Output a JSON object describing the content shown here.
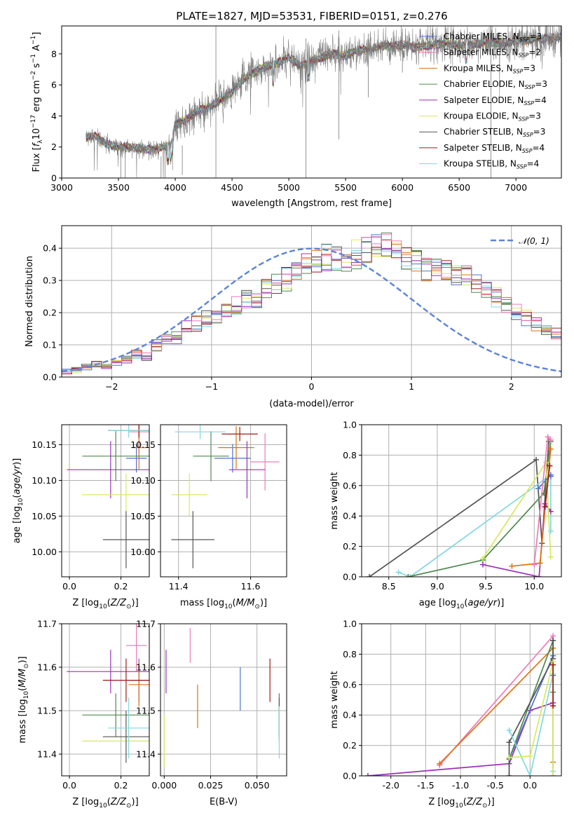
{
  "figure_title": "PLATE=1827, MJD=53531, FIBERID=0151, z=0.276",
  "colors": {
    "blue": "#4f72d2",
    "orange": "#e07010",
    "green": "#4f8a4f",
    "purple": "#9a30b8",
    "yellow": "#d8e860",
    "gray": "#555555",
    "red": "#a01818",
    "cyan": "#80d8e0",
    "pink": "#f07ab8",
    "spectrum_gray": "#7a7a7a",
    "gauss": "#5b84d8"
  },
  "chart_data": [
    {
      "id": "spectrum",
      "type": "line",
      "xlabel": "wavelength [Angstrom, rest frame]",
      "ylabel": "Flux [$f_\\lambda 10^{-17}$ erg cm$^{-2}$ s$^{-1}$ A$^{-1}$]",
      "xlim": [
        3000,
        7400
      ],
      "ylim": [
        0,
        9.8
      ],
      "xticks": [
        3000,
        3500,
        4000,
        4500,
        5000,
        5500,
        6000,
        6500,
        7000
      ],
      "yticks": [
        0,
        2,
        4,
        6,
        8
      ],
      "legend_position": "upper right",
      "legend": [
        {
          "label": "Chabrier MILES, N",
          "sub": "SSP",
          "n": "=3",
          "color": "blue"
        },
        {
          "label": "Salpeter MILES, N",
          "sub": "SSP",
          "n": "=2",
          "color": "pink"
        },
        {
          "label": "Kroupa MILES, N",
          "sub": "SSP",
          "n": "=3",
          "color": "orange"
        },
        {
          "label": "Chabrier ELODIE, N",
          "sub": "SSP",
          "n": "=3",
          "color": "green"
        },
        {
          "label": "Salpeter ELODIE, N",
          "sub": "SSP",
          "n": "=4",
          "color": "purple"
        },
        {
          "label": "Kroupa ELODIE, N",
          "sub": "SSP",
          "n": "=3",
          "color": "yellow"
        },
        {
          "label": "Chabrier STELIB, N",
          "sub": "SSP",
          "n": "=3",
          "color": "gray"
        },
        {
          "label": "Salpeter STELIB, N",
          "sub": "SSP",
          "n": "=4",
          "color": "red"
        },
        {
          "label": "Kroupa STELIB, N",
          "sub": "SSP",
          "n": "=4",
          "color": "cyan"
        }
      ],
      "continuum_wavelength": [
        3220,
        3300,
        3400,
        3500,
        3600,
        3700,
        3800,
        3900,
        3960,
        4000,
        4100,
        4200,
        4300,
        4400,
        4500,
        4600,
        4700,
        4800,
        4900,
        5000,
        5100,
        5200,
        5300,
        5400,
        5500,
        5600,
        5700,
        5800,
        5900,
        6000,
        6100,
        6200,
        6300,
        6400,
        6500,
        6600,
        6700,
        6800,
        6900,
        7000,
        7100,
        7200,
        7300,
        7400
      ],
      "continuum_flux": [
        2.6,
        2.7,
        2.2,
        2.0,
        2.0,
        1.9,
        1.8,
        2.0,
        2.2,
        3.4,
        3.8,
        4.3,
        4.6,
        5.0,
        5.5,
        6.4,
        6.8,
        7.2,
        7.4,
        7.8,
        7.2,
        7.5,
        7.8,
        8.0,
        7.9,
        8.2,
        8.3,
        8.5,
        8.5,
        8.6,
        8.4,
        8.5,
        8.6,
        8.7,
        8.5,
        8.6,
        8.7,
        8.7,
        8.7,
        8.8,
        8.9,
        9.0,
        9.0,
        9.1
      ]
    },
    {
      "id": "residuals",
      "type": "histogram",
      "xlabel": "(data-model)/error",
      "ylabel": "Normed distribution",
      "xlim": [
        -2.5,
        2.5
      ],
      "ylim": [
        0,
        0.47
      ],
      "xticks": [
        -2,
        -1,
        0,
        1,
        2
      ],
      "yticks": [
        0.0,
        0.1,
        0.2,
        0.3,
        0.4
      ],
      "legend_position": "upper right",
      "legend": [
        {
          "label": "𝒩(0, 1)",
          "color": "gauss"
        }
      ],
      "bin_edges_start": -2.5,
      "bin_width": 0.1,
      "reference_values": [
        0.015,
        0.021,
        0.035,
        0.041,
        0.038,
        0.05,
        0.053,
        0.07,
        0.066,
        0.098,
        0.12,
        0.125,
        0.15,
        0.17,
        0.18,
        0.19,
        0.21,
        0.222,
        0.235,
        0.248,
        0.275,
        0.29,
        0.308,
        0.33,
        0.355,
        0.355,
        0.372,
        0.37,
        0.365,
        0.385,
        0.4,
        0.415,
        0.405,
        0.39,
        0.375,
        0.362,
        0.345,
        0.332,
        0.325,
        0.318,
        0.315,
        0.298,
        0.27,
        0.245,
        0.225,
        0.205,
        0.185,
        0.168,
        0.148,
        0.13,
        0.112,
        0.092,
        0.08,
        0.07,
        0.062,
        0.05,
        0.045,
        0.038,
        0.03,
        0.03
      ]
    },
    {
      "id": "age_vs_Z",
      "type": "errorbar",
      "xlabel": "Z [log$_{10}$($Z/Z_\\odot$)]",
      "ylabel": "age  [log$_{10}$($age/yr$)]",
      "xlim": [
        -0.03,
        0.31
      ],
      "ylim": [
        9.965,
        10.178
      ],
      "xticks": [
        0.0,
        0.2
      ],
      "yticks": [
        10.0,
        10.05,
        10.1,
        10.15
      ],
      "points": [
        {
          "color": "blue",
          "x": 0.26,
          "xerr": 0.04,
          "y": 10.131,
          "yerr": 0.02
        },
        {
          "color": "pink",
          "x": 0.27,
          "xerr": 0.04,
          "y": 10.168,
          "yerr": 0.03
        },
        {
          "color": "orange",
          "x": 0.27,
          "xerr": 0.03,
          "y": 10.146,
          "yerr": 0.03
        },
        {
          "color": "green",
          "x": 0.18,
          "xerr": 0.13,
          "y": 10.134,
          "yerr": 0.035
        },
        {
          "color": "purple",
          "x": 0.16,
          "xerr": 0.17,
          "y": 10.115,
          "yerr": 0.04
        },
        {
          "color": "yellow",
          "x": 0.22,
          "xerr": 0.17,
          "y": 10.08,
          "yerr": 0.03
        },
        {
          "color": "gray",
          "x": 0.22,
          "xerr": 0.09,
          "y": 10.017,
          "yerr": 0.04
        },
        {
          "color": "red",
          "x": 0.27,
          "xerr": 0.12,
          "y": 10.17,
          "yerr": 0.01
        },
        {
          "color": "cyan",
          "x": 0.23,
          "xerr": 0.08,
          "y": 10.17,
          "yerr": 0.01
        }
      ]
    },
    {
      "id": "age_vs_mass",
      "type": "errorbar",
      "xlabel": "mass [log$_{10}$($M/M_\\odot$)]",
      "ylabel": "",
      "xlim": [
        11.35,
        11.7
      ],
      "ylim": [
        9.965,
        10.178
      ],
      "xticks": [
        11.4,
        11.6
      ],
      "yticks": [
        10.0,
        10.05,
        10.1,
        10.15
      ],
      "points": [
        {
          "color": "blue",
          "x": 11.55,
          "xerr": 0.05,
          "y": 10.131,
          "yerr": 0.02
        },
        {
          "color": "pink",
          "x": 11.64,
          "xerr": 0.04,
          "y": 10.126,
          "yerr": 0.04
        },
        {
          "color": "orange",
          "x": 11.56,
          "xerr": 0.05,
          "y": 10.146,
          "yerr": 0.03
        },
        {
          "color": "green",
          "x": 11.49,
          "xerr": 0.05,
          "y": 10.134,
          "yerr": 0.035
        },
        {
          "color": "purple",
          "x": 11.59,
          "xerr": 0.05,
          "y": 10.115,
          "yerr": 0.04
        },
        {
          "color": "yellow",
          "x": 11.43,
          "xerr": 0.05,
          "y": 10.08,
          "yerr": 0.03
        },
        {
          "color": "gray",
          "x": 11.44,
          "xerr": 0.06,
          "y": 10.017,
          "yerr": 0.04
        },
        {
          "color": "red",
          "x": 11.57,
          "xerr": 0.05,
          "y": 10.165,
          "yerr": 0.01
        },
        {
          "color": "cyan",
          "x": 11.46,
          "xerr": 0.07,
          "y": 10.168,
          "yerr": 0.01
        }
      ]
    },
    {
      "id": "mass_weight_vs_age",
      "type": "line",
      "xlabel": "age  [log$_{10}$($age/yr$)]",
      "ylabel": "mass weight",
      "xlim": [
        8.22,
        10.28
      ],
      "ylim": [
        0.0,
        1.0
      ],
      "xticks": [
        8.5,
        9.0,
        9.5,
        10.0
      ],
      "yticks": [
        0.0,
        0.2,
        0.4,
        0.6,
        0.8,
        1.0
      ],
      "series": [
        {
          "color": "gray",
          "x": [
            8.3,
            10.02,
            10.08,
            10.15
          ],
          "y": [
            0.0,
            0.77,
            0.22,
            0.89
          ]
        },
        {
          "color": "cyan",
          "x": [
            8.6,
            8.72,
            10.17,
            10.17
          ],
          "y": [
            0.03,
            0.0,
            0.67,
            0.3
          ]
        },
        {
          "color": "green",
          "x": [
            8.7,
            9.47,
            10.1,
            10.17
          ],
          "y": [
            0.0,
            0.11,
            0.55,
            0.89
          ]
        },
        {
          "color": "purple",
          "x": [
            9.47,
            10.05,
            10.11,
            10.17
          ],
          "y": [
            0.08,
            0.0,
            0.48,
            0.43
          ]
        },
        {
          "color": "yellow",
          "x": [
            9.47,
            10.12,
            10.17
          ],
          "y": [
            0.12,
            0.75,
            0.13
          ]
        },
        {
          "color": "orange",
          "x": [
            9.77,
            10.06,
            10.17
          ],
          "y": [
            0.07,
            0.09,
            0.84
          ]
        },
        {
          "color": "blue",
          "x": [
            10.04,
            10.17,
            10.17
          ],
          "y": [
            0.58,
            0.67,
            0.66
          ]
        },
        {
          "color": "pink",
          "x": [
            10.0,
            10.14,
            10.17
          ],
          "y": [
            0.08,
            0.92,
            0.9
          ]
        },
        {
          "color": "red",
          "x": [
            10.11,
            10.16
          ],
          "y": [
            0.46,
            0.73
          ]
        }
      ]
    },
    {
      "id": "mass_vs_Z",
      "type": "errorbar",
      "xlabel": "Z [log$_{10}$($Z/Z_\\odot$)]",
      "ylabel": "mass [log$_{10}$($M/M_\\odot$)]",
      "xlim": [
        -0.03,
        0.31
      ],
      "ylim": [
        11.35,
        11.7
      ],
      "xticks": [
        0.0,
        0.2
      ],
      "yticks": [
        11.4,
        11.5,
        11.6,
        11.7
      ],
      "points": [
        {
          "color": "blue",
          "x": 0.27,
          "xerr": 0.04,
          "y": 11.57,
          "yerr": 0.05
        },
        {
          "color": "pink",
          "x": 0.26,
          "xerr": 0.04,
          "y": 11.65,
          "yerr": 0.06
        },
        {
          "color": "orange",
          "x": 0.27,
          "xerr": 0.04,
          "y": 11.56,
          "yerr": 0.05
        },
        {
          "color": "green",
          "x": 0.18,
          "xerr": 0.13,
          "y": 11.49,
          "yerr": 0.05
        },
        {
          "color": "purple",
          "x": 0.16,
          "xerr": 0.17,
          "y": 11.59,
          "yerr": 0.05
        },
        {
          "color": "yellow",
          "x": 0.22,
          "xerr": 0.17,
          "y": 11.43,
          "yerr": 0.05
        },
        {
          "color": "gray",
          "x": 0.22,
          "xerr": 0.09,
          "y": 11.44,
          "yerr": 0.06
        },
        {
          "color": "red",
          "x": 0.22,
          "xerr": 0.09,
          "y": 11.57,
          "yerr": 0.05
        },
        {
          "color": "cyan",
          "x": 0.23,
          "xerr": 0.08,
          "y": 11.46,
          "yerr": 0.07
        }
      ]
    },
    {
      "id": "mass_vs_ebv",
      "type": "errorbar",
      "xlabel": "E(B-V)",
      "ylabel": "",
      "xlim": [
        -0.002,
        0.066
      ],
      "ylim": [
        11.35,
        11.7
      ],
      "xticks": [
        0.0,
        0.025,
        0.05
      ],
      "yticks": [
        11.4,
        11.5,
        11.6,
        11.7
      ],
      "points": [
        {
          "color": "blue",
          "x": 0.041,
          "xerr": 0.0,
          "y": 11.55,
          "yerr": 0.05
        },
        {
          "color": "pink",
          "x": 0.014,
          "xerr": 0.0,
          "y": 11.65,
          "yerr": 0.04
        },
        {
          "color": "orange",
          "x": 0.018,
          "xerr": 0.0,
          "y": 11.51,
          "yerr": 0.05
        },
        {
          "color": "green",
          "x": 0.062,
          "xerr": 0.0,
          "y": 11.49,
          "yerr": 0.05
        },
        {
          "color": "purple",
          "x": 0.001,
          "xerr": 0.0,
          "y": 11.59,
          "yerr": 0.05
        },
        {
          "color": "yellow",
          "x": 0.0,
          "xerr": 0.0,
          "y": 11.43,
          "yerr": 0.06
        },
        {
          "color": "gray",
          "x": 0.062,
          "xerr": 0.0,
          "y": 11.48,
          "yerr": 0.05
        },
        {
          "color": "red",
          "x": 0.057,
          "xerr": 0.0,
          "y": 11.57,
          "yerr": 0.05
        },
        {
          "color": "cyan",
          "x": 0.062,
          "xerr": 0.0,
          "y": 11.45,
          "yerr": 0.06
        }
      ]
    },
    {
      "id": "mass_weight_vs_Z",
      "type": "line",
      "xlabel": "Z [log$_{10}$($Z/Z_\\odot$)]",
      "ylabel": "mass weight",
      "xlim": [
        -2.42,
        0.45
      ],
      "ylim": [
        0.0,
        1.0
      ],
      "xticks": [
        -2.0,
        -1.5,
        -1.0,
        -0.5,
        0.0
      ],
      "yticks": [
        0.0,
        0.2,
        0.4,
        0.6,
        0.8,
        1.0
      ],
      "series": [
        {
          "color": "purple",
          "x": [
            -2.33,
            -0.3,
            0.0,
            0.33
          ],
          "y": [
            0.0,
            0.08,
            0.43,
            0.48
          ]
        },
        {
          "color": "pink",
          "x": [
            -1.3,
            0.33,
            0.33
          ],
          "y": [
            0.07,
            0.92,
            0.0
          ]
        },
        {
          "color": "orange",
          "x": [
            -1.3,
            0.33,
            0.33
          ],
          "y": [
            0.08,
            0.84,
            0.09
          ]
        },
        {
          "color": "blue",
          "x": [
            -0.3,
            0.33,
            0.33
          ],
          "y": [
            0.11,
            0.79,
            0.66
          ]
        },
        {
          "color": "green",
          "x": [
            -0.3,
            0.33,
            0.33
          ],
          "y": [
            0.11,
            0.89,
            0.55
          ]
        },
        {
          "color": "gray",
          "x": [
            -0.3,
            -0.3,
            0.33,
            0.33
          ],
          "y": [
            0.0,
            0.22,
            0.77,
            0.89
          ]
        },
        {
          "color": "cyan",
          "x": [
            -0.3,
            0.0,
            0.33,
            0.33
          ],
          "y": [
            0.3,
            0.0,
            0.67,
            0.03
          ]
        },
        {
          "color": "yellow",
          "x": [
            -0.3,
            0.0,
            0.33,
            0.33
          ],
          "y": [
            0.12,
            0.13,
            0.75,
            0.0
          ]
        },
        {
          "color": "red",
          "x": [
            0.33,
            0.33
          ],
          "y": [
            0.46,
            0.73
          ]
        }
      ]
    }
  ]
}
